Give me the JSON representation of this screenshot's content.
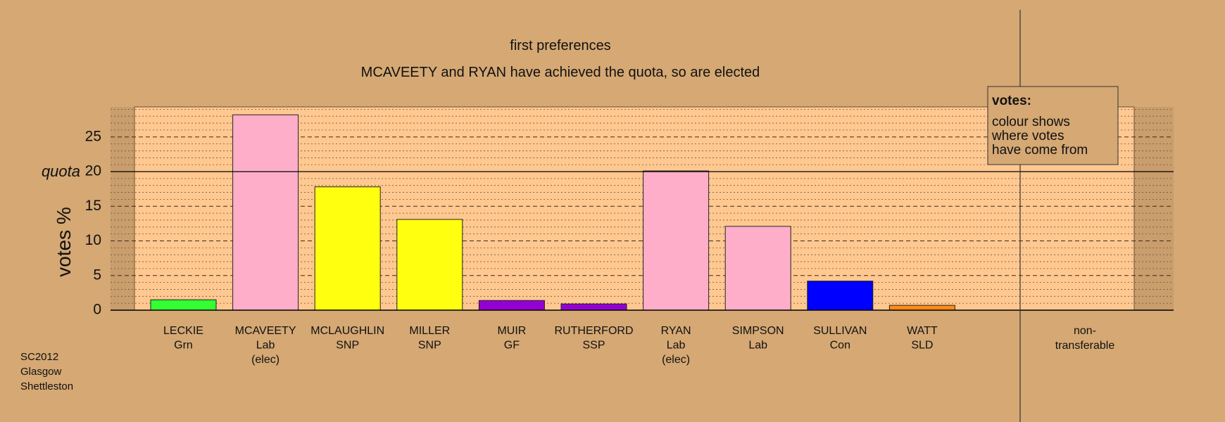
{
  "colors": {
    "background": "#d5a874",
    "plot_panel": "#ffc890",
    "Grn": "#33ff33",
    "Lab": "#ffaec9",
    "SNP": "#ffff0f",
    "GF": "#9400d3",
    "SSP": "#9400d3",
    "Con": "#0000ff",
    "SLD": "#ff8c1a"
  },
  "chart_data": {
    "type": "bar",
    "title": "first preferences",
    "subtitle": "MCAVEETY and RYAN have achieved the quota, so are elected",
    "ylabel": "votes %",
    "ylim": [
      0,
      30
    ],
    "yticks": [
      "0",
      "5",
      "10",
      "15",
      "20",
      "25"
    ],
    "quota": 20,
    "quota_label": "quota",
    "grid": true,
    "categories": [
      {
        "name": "LECKIE",
        "party": "Grn",
        "note": ""
      },
      {
        "name": "MCAVEETY",
        "party": "Lab",
        "note": "(elec)"
      },
      {
        "name": "MCLAUGHLIN",
        "party": "SNP",
        "note": ""
      },
      {
        "name": "MILLER",
        "party": "SNP",
        "note": ""
      },
      {
        "name": "MUIR",
        "party": "GF",
        "note": ""
      },
      {
        "name": "RUTHERFORD",
        "party": "SSP",
        "note": ""
      },
      {
        "name": "RYAN",
        "party": "Lab",
        "note": "(elec)"
      },
      {
        "name": "SIMPSON",
        "party": "Lab",
        "note": ""
      },
      {
        "name": "SULLIVAN",
        "party": "Con",
        "note": ""
      },
      {
        "name": "WATT",
        "party": "SLD",
        "note": ""
      }
    ],
    "values": [
      1.5,
      28.2,
      17.8,
      13.1,
      1.4,
      0.9,
      20.1,
      12.1,
      4.2,
      0.7
    ],
    "nontransferable": {
      "line1": "non-",
      "line2": "transferable",
      "value": 0
    },
    "legend": {
      "position": "top-right",
      "title": "votes:",
      "lines": [
        "colour shows",
        "where votes",
        "have come from"
      ]
    }
  },
  "footer": {
    "line1": "SC2012",
    "line2": "Glasgow",
    "line3": "Shettleston"
  }
}
